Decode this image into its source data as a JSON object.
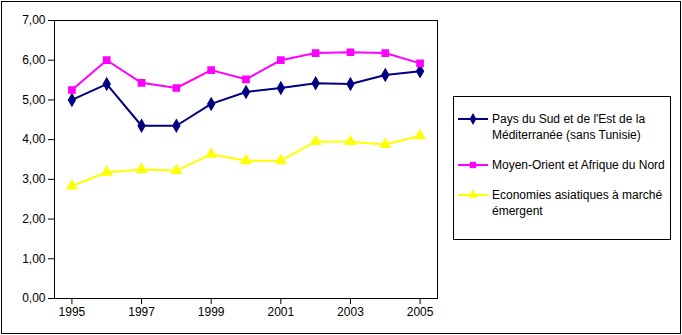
{
  "chart_data": {
    "type": "line",
    "x": [
      1995,
      1996,
      1997,
      1998,
      1999,
      2000,
      2001,
      2002,
      2003,
      2004,
      2005
    ],
    "series": [
      {
        "name": "Pays du Sud et de l'Est de la Méditerranée (sans Tunisie)",
        "color": "#000080",
        "marker": "diamond",
        "values": [
          5.0,
          5.4,
          4.35,
          4.35,
          4.9,
          5.2,
          5.3,
          5.42,
          5.4,
          5.63,
          5.72
        ]
      },
      {
        "name": "Moyen-Orient et Afrique du Nord",
        "color": "#FF00FF",
        "marker": "square",
        "values": [
          5.25,
          6.0,
          5.43,
          5.3,
          5.75,
          5.52,
          6.0,
          6.18,
          6.2,
          6.18,
          5.92
        ]
      },
      {
        "name": "Economies asiatiques à marché émergent",
        "color": "#FFFF00",
        "marker": "triangle",
        "values": [
          2.83,
          3.18,
          3.25,
          3.22,
          3.63,
          3.47,
          3.47,
          3.95,
          3.95,
          3.88,
          4.1
        ]
      }
    ],
    "xlim": [
      1994.5,
      2005.5
    ],
    "xticks": [
      1995,
      1997,
      1999,
      2001,
      2003,
      2005
    ],
    "ylim": [
      0,
      7
    ],
    "yticks": [
      {
        "value": 0,
        "label": "0,00"
      },
      {
        "value": 1,
        "label": "1,00"
      },
      {
        "value": 2,
        "label": "2,00"
      },
      {
        "value": 3,
        "label": "3,00"
      },
      {
        "value": 4,
        "label": "4,00"
      },
      {
        "value": 5,
        "label": "5,00"
      },
      {
        "value": 6,
        "label": "6,00"
      },
      {
        "value": 7,
        "label": "7,00"
      }
    ],
    "grid": false,
    "legend": "right"
  }
}
